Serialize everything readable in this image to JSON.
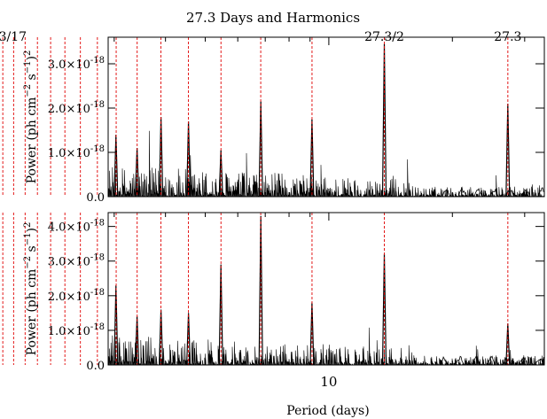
{
  "chart_data": {
    "type": "line",
    "title": "27.3 Days and Harmonics",
    "xlabel": "Period (days)",
    "xscale": "log",
    "xlim": [
      2.9,
      33.5
    ],
    "x_tick_labels": [
      {
        "value": 10,
        "label": "10"
      }
    ],
    "harmonic_markers": {
      "base_period": 27.3,
      "harmonics": [
        1,
        2,
        3,
        4,
        5,
        6,
        7,
        8,
        9,
        10,
        11,
        12,
        13,
        14,
        15,
        16,
        17
      ],
      "labels": [
        {
          "harmonic": 17,
          "text": "27.3/17"
        },
        {
          "harmonic": 2,
          "text": "27.3/2"
        },
        {
          "harmonic": 1,
          "text": "27.3"
        }
      ],
      "color": "#e00000"
    },
    "panels": [
      {
        "ylabel": "Power (ph cm⁻² s⁻¹)²",
        "ylim": [
          0,
          3.6e-18
        ],
        "y_tick_labels": [
          {
            "value": 0,
            "label": "0.0"
          },
          {
            "value": 1e-18,
            "label": "1.0×10⁻¹⁸"
          },
          {
            "value": 2e-18,
            "label": "2.0×10⁻¹⁸"
          },
          {
            "value": 3e-18,
            "label": "3.0×10⁻¹⁸"
          }
        ],
        "peaks": [
          {
            "period": 27.3,
            "power": 2.1e-18
          },
          {
            "period": 13.65,
            "power": 3.45e-18
          },
          {
            "period": 9.1,
            "power": 1.75e-18
          },
          {
            "period": 6.83,
            "power": 2.15e-18
          },
          {
            "period": 5.46,
            "power": 1.05e-18
          },
          {
            "period": 4.55,
            "power": 1.7e-18
          },
          {
            "period": 3.9,
            "power": 1.8e-18
          },
          {
            "period": 3.41,
            "power": 1.1e-18
          },
          {
            "period": 3.03,
            "power": 1.4e-18
          },
          {
            "period": 2.73,
            "power": 1.95e-18
          },
          {
            "period": 2.48,
            "power": 9.5e-19
          },
          {
            "period": 2.28,
            "power": 1.85e-18
          },
          {
            "period": 2.1,
            "power": 1.5e-18
          },
          {
            "period": 1.95,
            "power": 1.2e-18
          },
          {
            "period": 1.82,
            "power": 1.65e-18
          },
          {
            "period": 1.71,
            "power": 3.15e-18
          },
          {
            "period": 1.61,
            "power": 2.2e-18
          }
        ],
        "noise_level": 4.5e-19
      },
      {
        "ylabel": "Power (ph cm⁻² s⁻¹)²",
        "ylim": [
          0,
          4.4e-18
        ],
        "y_tick_labels": [
          {
            "value": 0,
            "label": "0.0"
          },
          {
            "value": 1e-18,
            "label": "1.0×10⁻¹⁸"
          },
          {
            "value": 2e-18,
            "label": "2.0×10⁻¹⁸"
          },
          {
            "value": 3e-18,
            "label": "3.0×10⁻¹⁸"
          },
          {
            "value": 4e-18,
            "label": "4.0×10⁻¹⁸"
          }
        ],
        "peaks": [
          {
            "period": 27.3,
            "power": 1.2e-18
          },
          {
            "period": 13.65,
            "power": 3.2e-18
          },
          {
            "period": 9.1,
            "power": 1.8e-18
          },
          {
            "period": 6.83,
            "power": 4.3e-18
          },
          {
            "period": 5.46,
            "power": 2.9e-18
          },
          {
            "period": 4.55,
            "power": 1.5e-18
          },
          {
            "period": 3.9,
            "power": 1.6e-18
          },
          {
            "period": 3.41,
            "power": 1.4e-18
          },
          {
            "period": 3.03,
            "power": 2.3e-18
          },
          {
            "period": 2.73,
            "power": 1.5e-18
          },
          {
            "period": 2.48,
            "power": 1.3e-18
          },
          {
            "period": 2.28,
            "power": 3.15e-18
          },
          {
            "period": 2.1,
            "power": 1.7e-18
          },
          {
            "period": 1.95,
            "power": 4.05e-18
          },
          {
            "period": 1.82,
            "power": 1.4e-18
          },
          {
            "period": 1.71,
            "power": 1.6e-18
          },
          {
            "period": 1.61,
            "power": 1.3e-18
          }
        ],
        "noise_level": 5.5e-19
      }
    ]
  }
}
